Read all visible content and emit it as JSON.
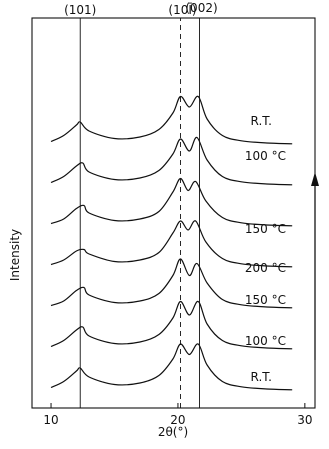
{
  "chart_data": {
    "type": "line",
    "xlabel": "2θ(°)",
    "ylabel": "Intensity",
    "xlim": [
      8.5,
      30.8
    ],
    "x_ticks": [
      "10",
      "20",
      "30"
    ],
    "peak_labels": [
      {
        "text": "(101)",
        "x": 12.3,
        "style": "solid"
      },
      {
        "text": "(10Ī)",
        "x": 20.2,
        "style": "dashed"
      },
      {
        "text": "(002)",
        "x": 21.7,
        "style": "solid"
      }
    ],
    "series": [
      {
        "name": "R.T.",
        "baseline": 0,
        "x": [
          10,
          11,
          12,
          12.3,
          13,
          15,
          17,
          18.5,
          19.6,
          20.2,
          20.9,
          21.6,
          22.3,
          23.5,
          25,
          27,
          29
        ],
        "y": [
          0.3,
          0.7,
          1.4,
          1.6,
          1.0,
          0.5,
          0.6,
          1.1,
          2.2,
          3.2,
          2.5,
          3.2,
          1.8,
          0.7,
          0.35,
          0.2,
          0.15
        ]
      },
      {
        "name": "100 °C",
        "baseline": 1,
        "x": [
          10,
          11,
          12,
          12.5,
          13,
          15,
          17,
          18.5,
          19.6,
          20.2,
          20.9,
          21.6,
          22.3,
          23.5,
          25,
          27,
          29
        ],
        "y": [
          0.3,
          0.7,
          1.4,
          1.6,
          1.0,
          0.5,
          0.6,
          1.1,
          2.2,
          3.3,
          2.4,
          3.3,
          1.8,
          0.7,
          0.35,
          0.2,
          0.15
        ]
      },
      {
        "name": "150 °C",
        "baseline": 2,
        "x": [
          10,
          11,
          12,
          12.6,
          13,
          15,
          17,
          18.5,
          19.6,
          20.2,
          20.9,
          21.5,
          22.3,
          23.5,
          25,
          27,
          29
        ],
        "y": [
          0.3,
          0.6,
          1.3,
          1.5,
          1.0,
          0.5,
          0.6,
          1.1,
          2.3,
          3.4,
          2.3,
          3.1,
          1.8,
          0.7,
          0.35,
          0.2,
          0.15
        ]
      },
      {
        "name": "200 °C",
        "baseline": 3,
        "x": [
          10,
          11,
          12,
          12.6,
          13,
          15,
          17,
          18.5,
          19.6,
          20.2,
          20.8,
          21.4,
          22.2,
          23.5,
          25,
          27,
          29
        ],
        "y": [
          0.3,
          0.6,
          1.2,
          1.3,
          1.0,
          0.5,
          0.6,
          1.1,
          2.4,
          3.2,
          2.6,
          3.2,
          1.8,
          0.7,
          0.35,
          0.2,
          0.15
        ]
      },
      {
        "name": "150 °C",
        "baseline": 4,
        "x": [
          10,
          11,
          12,
          12.6,
          13,
          15,
          17,
          18.5,
          19.6,
          20.2,
          20.8,
          21.4,
          22.2,
          23.5,
          25,
          27,
          29
        ],
        "y": [
          0.3,
          0.6,
          1.3,
          1.5,
          1.0,
          0.5,
          0.6,
          1.1,
          2.4,
          3.3,
          2.5,
          3.1,
          1.8,
          0.7,
          0.35,
          0.2,
          0.15
        ]
      },
      {
        "name": "100 °C",
        "baseline": 5,
        "x": [
          10,
          11,
          12,
          12.5,
          13,
          15,
          17,
          18.5,
          19.6,
          20.2,
          20.9,
          21.5,
          22.3,
          23.5,
          25,
          27,
          29
        ],
        "y": [
          0.3,
          0.7,
          1.4,
          1.6,
          1.0,
          0.5,
          0.6,
          1.1,
          2.2,
          3.2,
          2.4,
          3.3,
          1.8,
          0.7,
          0.35,
          0.2,
          0.15
        ]
      },
      {
        "name": "R.T.",
        "baseline": 6,
        "x": [
          10,
          11,
          12,
          12.3,
          13,
          15,
          17,
          18.5,
          19.6,
          20.2,
          20.9,
          21.6,
          22.3,
          23.5,
          25,
          27,
          29
        ],
        "y": [
          0.3,
          0.7,
          1.4,
          1.6,
          1.0,
          0.5,
          0.6,
          1.1,
          2.2,
          3.3,
          2.6,
          3.3,
          1.8,
          0.7,
          0.35,
          0.2,
          0.15
        ]
      }
    ]
  }
}
